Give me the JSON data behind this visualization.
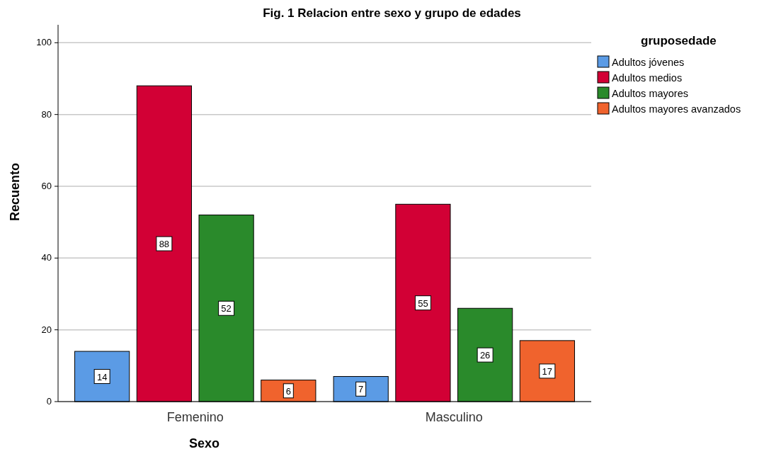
{
  "chart_data": {
    "type": "bar",
    "title": "Fig. 1 Relacion entre sexo y grupo de edades",
    "xlabel": "Sexo",
    "ylabel": "Recuento",
    "legend_title": "gruposedade",
    "categories": [
      "Femenino",
      "Masculino"
    ],
    "series": [
      {
        "name": "Adultos jóvenes",
        "color": "#5b9be5",
        "values": [
          14,
          7
        ]
      },
      {
        "name": "Adultos medios",
        "color": "#d20035",
        "values": [
          88,
          55
        ]
      },
      {
        "name": "Adultos mayores",
        "color": "#2a8a2b",
        "values": [
          52,
          26
        ]
      },
      {
        "name": "Adultos mayores avanzados",
        "color": "#f0632d",
        "values": [
          6,
          17
        ]
      }
    ],
    "ylim": [
      0,
      105
    ],
    "yticks": [
      0,
      20,
      40,
      60,
      80,
      100
    ],
    "grid": "y",
    "legend": "top right",
    "data_labels": true
  }
}
